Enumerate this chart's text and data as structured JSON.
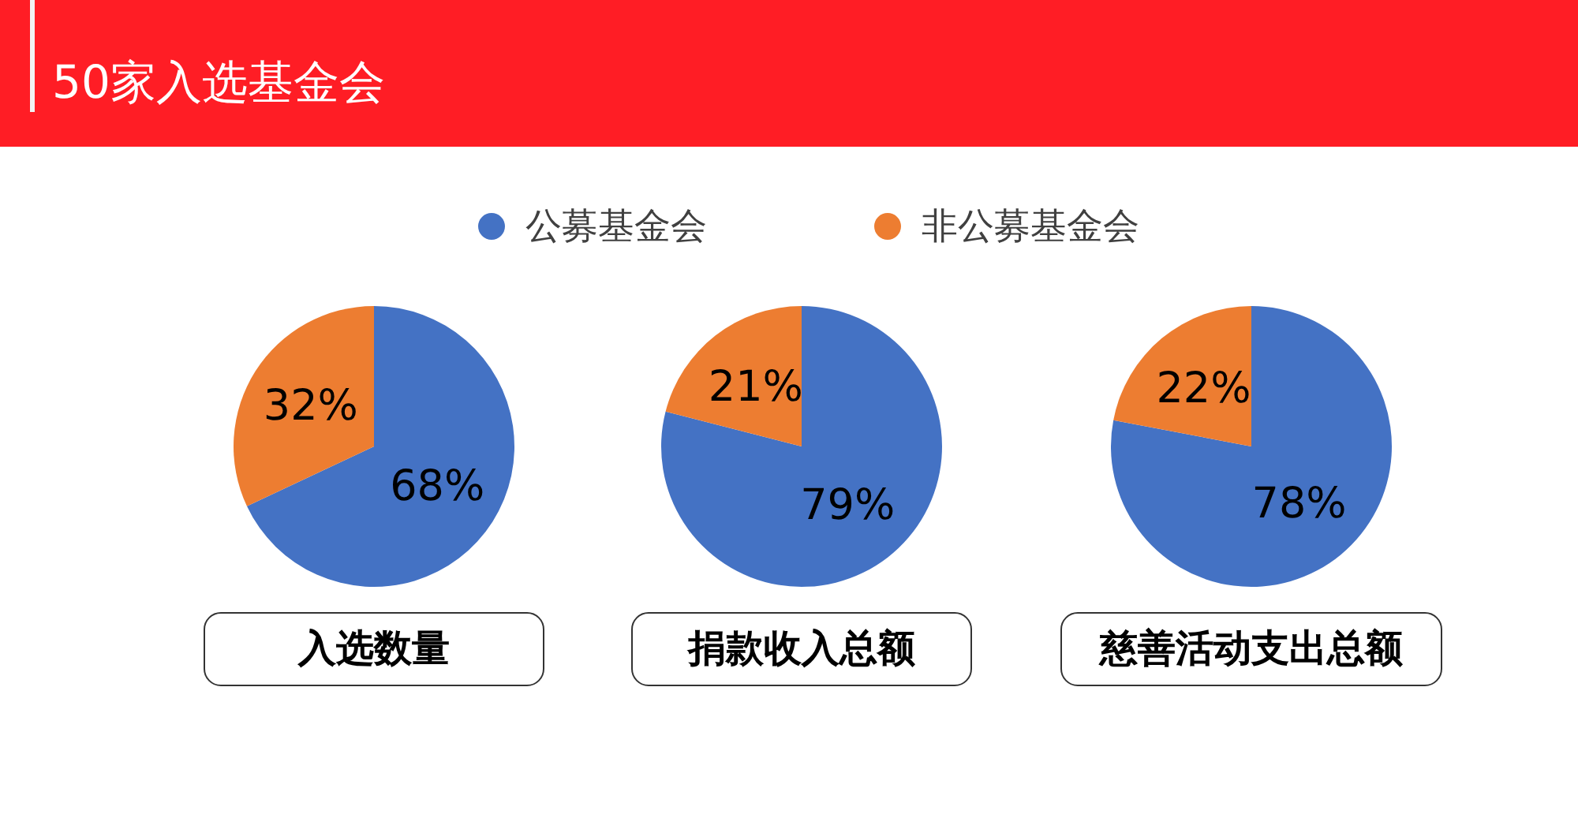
{
  "chart_data": [
    {
      "type": "pie",
      "title": "50家入选基金会",
      "xlabel": "入选数量",
      "categories": [
        "公募基金会",
        "非公募基金会"
      ],
      "values": [
        68,
        32
      ],
      "colors": [
        "#4472c4",
        "#ed7d31"
      ],
      "value_labels": [
        "68%",
        "32%"
      ],
      "legend": "top"
    },
    {
      "type": "pie",
      "xlabel": "捐款收入总额",
      "values": [
        79,
        21
      ],
      "colors": [
        "#4472c4",
        "#ed7d31"
      ],
      "value_labels": [
        "79%",
        "21%"
      ]
    },
    {
      "type": "pie",
      "xlabel": "慈善活动支出总额",
      "values": [
        78,
        22
      ],
      "colors": [
        "#4472c4",
        "#ed7d31"
      ],
      "value_labels": [
        "78%",
        "22%"
      ]
    }
  ]
}
